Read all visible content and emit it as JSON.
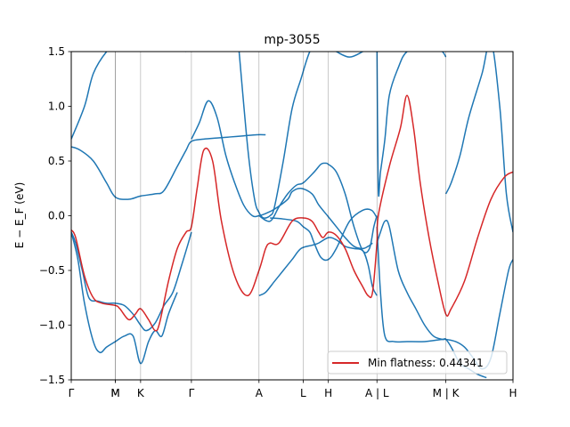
{
  "chart_data": {
    "type": "line",
    "title": "mp-3055",
    "ylabel": "E − E_F (eV)",
    "xlabel": "",
    "ylim": [
      -1.5,
      1.5
    ],
    "xlim": [
      0,
      1
    ],
    "yticks": [
      "−1.5",
      "−1.0",
      "−0.5",
      "0.0",
      "0.5",
      "1.0",
      "1.5"
    ],
    "ytick_values": [
      -1.5,
      -1.0,
      -0.5,
      0.0,
      0.5,
      1.0,
      1.5
    ],
    "kpoints": [
      {
        "label": "Γ",
        "x": 0.0
      },
      {
        "label": "M",
        "x": 0.1
      },
      {
        "label": "M",
        "x": 0.1
      },
      {
        "label": "K",
        "x": 0.157
      },
      {
        "label": "Γ",
        "x": 0.272
      },
      {
        "label": "A",
        "x": 0.425
      },
      {
        "label": "L",
        "x": 0.525
      },
      {
        "label": "H",
        "x": 0.582
      },
      {
        "label": "A | L",
        "x": 0.692
      },
      {
        "label": "M | K",
        "x": 0.848
      },
      {
        "label": "H",
        "x": 1.0
      }
    ],
    "legend": {
      "placement": "lower-right",
      "entries": [
        "Min flatness: 0.44341"
      ]
    },
    "grid": false,
    "colors": {
      "bands": "#1f77b4",
      "highlight": "#d62728"
    },
    "series": [
      {
        "role": "band",
        "x": [
          0,
          0.03,
          0.05,
          0.08,
          0.1,
          0.13,
          0.157,
          0.2,
          0.23,
          0.26
        ],
        "y": [
          0.7,
          1.0,
          1.3,
          1.5,
          1.55,
          1.6,
          1.6,
          1.6,
          1.55,
          1.5
        ]
      },
      {
        "role": "band",
        "x": [
          0,
          0.02,
          0.05,
          0.08,
          0.1,
          0.13,
          0.157,
          0.19,
          0.21,
          0.24,
          0.26,
          0.272,
          0.3,
          0.33,
          0.36,
          0.39,
          0.42,
          0.44
        ],
        "y": [
          0.63,
          0.6,
          0.5,
          0.3,
          0.17,
          0.15,
          0.18,
          0.2,
          0.23,
          0.45,
          0.6,
          0.68,
          0.7,
          0.71,
          0.72,
          0.73,
          0.74,
          0.74
        ]
      },
      {
        "role": "band",
        "x": [
          0.272,
          0.29,
          0.31,
          0.33,
          0.35,
          0.37,
          0.39,
          0.41,
          0.425,
          0.44,
          0.46,
          0.49,
          0.5,
          0.52,
          0.545,
          0.56,
          0.58,
          0.6,
          0.62,
          0.64,
          0.66,
          0.672,
          0.682
        ],
        "y": [
          0.7,
          0.85,
          1.05,
          0.9,
          0.55,
          0.3,
          0.1,
          0.0,
          0.0,
          0.02,
          0.06,
          0.15,
          0.22,
          0.25,
          0.2,
          0.1,
          0.0,
          -0.1,
          -0.2,
          -0.28,
          -0.3,
          -0.28,
          -0.25
        ]
      },
      {
        "role": "band",
        "x": [
          0.38,
          0.4,
          0.415,
          0.425,
          0.435,
          0.45,
          0.46,
          0.48,
          0.5,
          0.52,
          0.54,
          0.56,
          0.58,
          0.6,
          0.63,
          0.66,
          0.68,
          0.692
        ],
        "y": [
          1.5,
          0.6,
          0.15,
          0.03,
          -0.02,
          0.0,
          0.08,
          0.5,
          0.98,
          1.25,
          1.5,
          1.6,
          1.55,
          1.5,
          1.45,
          1.5,
          1.55,
          1.6
        ]
      },
      {
        "role": "band",
        "x": [
          0.425,
          0.45,
          0.47,
          0.49,
          0.51,
          0.525,
          0.55,
          0.565,
          0.575,
          0.582,
          0.6,
          0.62,
          0.64,
          0.66,
          0.675,
          0.685,
          0.692
        ],
        "y": [
          0.0,
          -0.05,
          0.08,
          0.2,
          0.28,
          0.3,
          0.4,
          0.47,
          0.48,
          0.47,
          0.4,
          0.2,
          -0.1,
          -0.32,
          -0.3,
          -0.1,
          0.0
        ]
      },
      {
        "role": "band",
        "x": [
          0.45,
          0.48,
          0.51,
          0.525,
          0.54,
          0.55,
          0.565,
          0.582,
          0.6,
          0.63,
          0.66,
          0.68,
          0.692
        ],
        "y": [
          -0.02,
          -0.03,
          -0.05,
          -0.1,
          -0.15,
          -0.25,
          -0.38,
          -0.4,
          -0.3,
          -0.05,
          0.05,
          0.05,
          -0.02
        ]
      },
      {
        "role": "band",
        "x": [
          0.425,
          0.44,
          0.46,
          0.48,
          0.5,
          0.52,
          0.545,
          0.56,
          0.582,
          0.6,
          0.62,
          0.64,
          0.66,
          0.672,
          0.682,
          0.692
        ],
        "y": [
          -0.73,
          -0.7,
          -0.6,
          -0.5,
          -0.4,
          -0.3,
          -0.27,
          -0.25,
          -0.2,
          -0.22,
          -0.28,
          -0.3,
          -0.32,
          -0.45,
          -0.65,
          -0.73
        ]
      },
      {
        "role": "band",
        "x": [
          0,
          0.01,
          0.025,
          0.04,
          0.06,
          0.08,
          0.1,
          0.12,
          0.14,
          0.157,
          0.17,
          0.19,
          0.21,
          0.23,
          0.25,
          0.265,
          0.272
        ],
        "y": [
          -0.15,
          -0.25,
          -0.5,
          -0.75,
          -0.78,
          -0.8,
          -0.8,
          -0.82,
          -0.9,
          -1.0,
          -1.05,
          -0.98,
          -0.82,
          -0.7,
          -0.45,
          -0.25,
          -0.15
        ]
      },
      {
        "role": "band",
        "x": [
          0,
          0.015,
          0.03,
          0.05,
          0.065,
          0.08,
          0.1,
          0.12,
          0.14,
          0.157,
          0.175,
          0.19,
          0.205,
          0.22,
          0.24
        ],
        "y": [
          -0.15,
          -0.4,
          -0.8,
          -1.15,
          -1.25,
          -1.2,
          -1.15,
          -1.1,
          -1.1,
          -1.35,
          -1.15,
          -1.05,
          -1.1,
          -0.9,
          -0.7
        ]
      },
      {
        "role": "band",
        "x": [
          0.692,
          0.695,
          0.7,
          0.71,
          0.72,
          0.74,
          0.76,
          0.8,
          0.82,
          0.84,
          0.848
        ],
        "y": [
          1.6,
          0.25,
          0.4,
          0.7,
          1.1,
          1.35,
          1.5,
          1.55,
          1.55,
          1.5,
          1.45
        ]
      },
      {
        "role": "band",
        "x": [
          0.848,
          0.86,
          0.88,
          0.9,
          0.93,
          0.95,
          0.97,
          0.985,
          1.0
        ],
        "y": [
          0.2,
          0.3,
          0.55,
          0.9,
          1.3,
          1.6,
          1.0,
          0.2,
          -0.15
        ]
      },
      {
        "role": "band",
        "x": [
          0.692,
          0.7,
          0.71,
          0.72,
          0.74,
          0.76,
          0.78,
          0.8,
          0.82,
          0.84,
          0.848,
          0.87,
          0.89,
          0.91,
          0.93,
          0.95,
          0.97,
          0.99,
          1.0
        ],
        "y": [
          -0.25,
          -0.15,
          -0.05,
          -0.1,
          -0.5,
          -0.7,
          -0.85,
          -1.0,
          -1.1,
          -1.13,
          -1.13,
          -1.15,
          -1.2,
          -1.3,
          -1.4,
          -1.3,
          -0.9,
          -0.5,
          -0.4
        ]
      },
      {
        "role": "band",
        "x": [
          0.692,
          0.7,
          0.71,
          0.73,
          0.76,
          0.8,
          0.84,
          0.848,
          0.86,
          0.88,
          0.9,
          0.92,
          0.94
        ],
        "y": [
          -0.1,
          -0.7,
          -1.1,
          -1.15,
          -1.15,
          -1.15,
          -1.13,
          -1.13,
          -1.2,
          -1.35,
          -1.4,
          -1.45,
          -1.48
        ]
      },
      {
        "role": "highlight",
        "name": "Min flatness: 0.44341",
        "x": [
          0,
          0.01,
          0.03,
          0.05,
          0.07,
          0.1,
          0.11,
          0.13,
          0.145,
          0.157,
          0.175,
          0.19,
          0.2,
          0.22,
          0.24,
          0.26,
          0.272,
          0.285,
          0.3,
          0.32,
          0.34,
          0.37,
          0.4,
          0.425,
          0.44,
          0.45,
          0.47,
          0.5,
          0.525,
          0.545,
          0.56,
          0.57,
          0.582,
          0.6,
          0.62,
          0.64,
          0.66,
          0.672,
          0.682,
          0.692,
          0.695,
          0.72,
          0.745,
          0.76,
          0.775,
          0.79,
          0.81,
          0.83,
          0.848,
          0.86,
          0.89,
          0.92,
          0.95,
          0.98,
          1.0
        ],
        "y": [
          -0.13,
          -0.2,
          -0.55,
          -0.75,
          -0.8,
          -0.82,
          -0.85,
          -0.95,
          -0.9,
          -0.85,
          -0.95,
          -1.05,
          -0.98,
          -0.6,
          -0.3,
          -0.15,
          -0.1,
          0.25,
          0.6,
          0.5,
          -0.05,
          -0.55,
          -0.73,
          -0.5,
          -0.3,
          -0.25,
          -0.25,
          -0.05,
          -0.02,
          -0.05,
          -0.15,
          -0.2,
          -0.15,
          -0.18,
          -0.3,
          -0.5,
          -0.65,
          -0.73,
          -0.7,
          -0.25,
          0.0,
          0.45,
          0.8,
          1.1,
          0.8,
          0.3,
          -0.2,
          -0.6,
          -0.9,
          -0.85,
          -0.6,
          -0.2,
          0.15,
          0.35,
          0.4
        ]
      }
    ]
  }
}
